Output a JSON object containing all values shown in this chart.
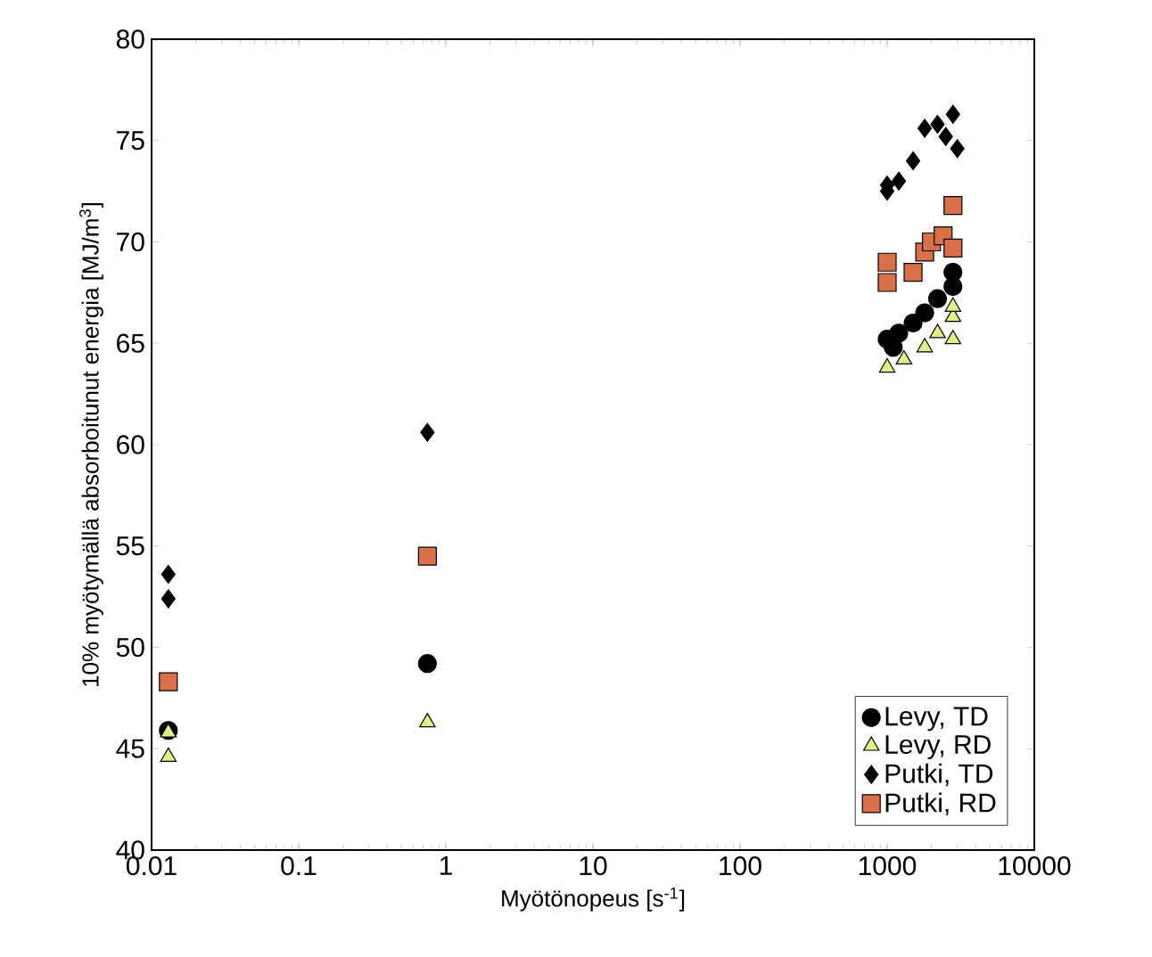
{
  "chart_data": {
    "type": "scatter",
    "xlabel": "Myötönopeus [s$^{-1}$]",
    "ylabel": "10% myötymällä absorboitunut energia [MJ/m$^{3}$]",
    "log": "x",
    "xlim": [
      0.01,
      10000
    ],
    "xticks": [
      0.01,
      0.1,
      1,
      10,
      100,
      1000,
      10000
    ],
    "ylim": [
      40,
      80
    ],
    "yticks": [
      40,
      45,
      50,
      55,
      60,
      65,
      70,
      75,
      80
    ],
    "legend": "bottom right",
    "series": [
      {
        "name": "Levy, TD",
        "color": "#000000",
        "marker": "circle",
        "x": [
          0.013,
          0.75,
          1000,
          1100,
          1200,
          1500,
          1800,
          2200,
          2800,
          2800
        ],
        "values": [
          45.9,
          49.2,
          65.2,
          64.8,
          65.5,
          66,
          66.5,
          67.2,
          67.8,
          68.5
        ]
      },
      {
        "name": "Levy, RD",
        "color": "#e3ee8a",
        "marker": "triangle",
        "x": [
          0.013,
          0.013,
          0.75,
          1000,
          1300,
          1800,
          2200,
          2800,
          2800,
          2800
        ],
        "values": [
          45.8,
          44.6,
          46.3,
          63.8,
          64.2,
          64.8,
          65.5,
          66.3,
          65.2,
          66.8
        ]
      },
      {
        "name": "Putki, TD",
        "color": "#000000",
        "marker": "diamond",
        "x": [
          0.013,
          0.013,
          0.75,
          1000,
          1000,
          1200,
          1500,
          1800,
          2200,
          2800,
          2500,
          3000
        ],
        "values": [
          53.6,
          52.4,
          60.6,
          72.8,
          72.5,
          73,
          74,
          75.6,
          75.8,
          76.3,
          75.2,
          74.6
        ]
      },
      {
        "name": "Putki, RD",
        "color": "#d9704a",
        "marker": "square",
        "x": [
          0.013,
          0.75,
          1000,
          1000,
          1500,
          1800,
          2000,
          2400,
          2800,
          2800
        ],
        "values": [
          48.3,
          54.5,
          69,
          68,
          68.5,
          69.5,
          70,
          70.3,
          71.8,
          69.7
        ]
      }
    ]
  }
}
